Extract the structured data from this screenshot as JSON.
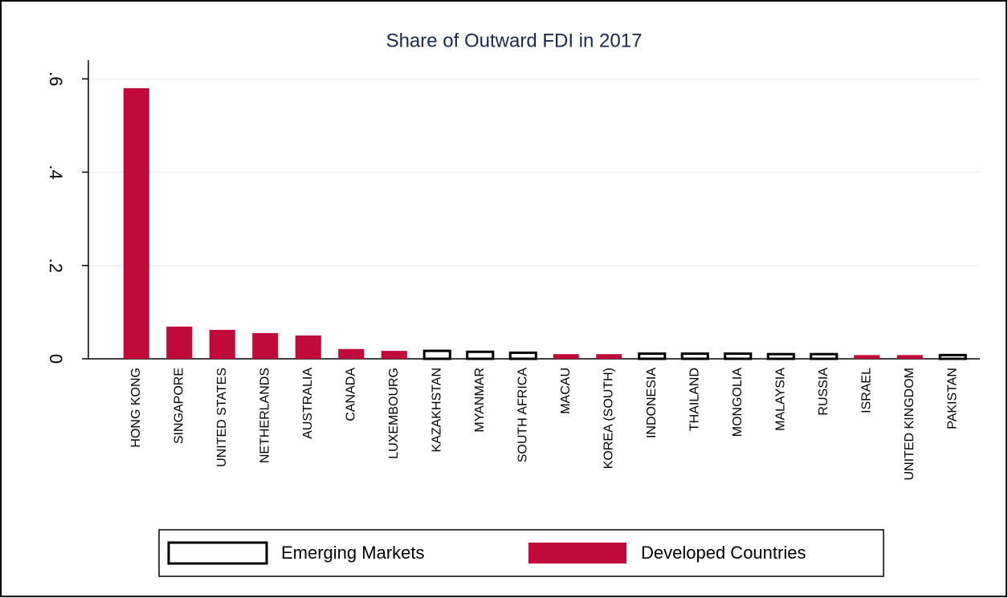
{
  "chart_data": {
    "type": "bar",
    "title": "Share of Outward FDI in 2017",
    "categories": [
      "HONG KONG",
      "SINGAPORE",
      "UNITED STATES",
      "NETHERLANDS",
      "AUSTRALIA",
      "CANADA",
      "LUXEMBOURG",
      "KAZAKHSTAN",
      "MYANMAR",
      "SOUTH AFRICA",
      "MACAU",
      "KOREA (SOUTH)",
      "INDONESIA",
      "THAILAND",
      "MONGOLIA",
      "MALAYSIA",
      "RUSSIA",
      "ISRAEL",
      "UNITED KINGDOM",
      "PAKISTAN"
    ],
    "series": [
      {
        "name": "Emerging Markets",
        "color": "#000000",
        "style": "outline",
        "values": [
          null,
          null,
          null,
          null,
          null,
          null,
          null,
          0.017,
          0.015,
          0.013,
          null,
          null,
          0.011,
          0.011,
          0.011,
          0.01,
          0.01,
          null,
          null,
          0.008
        ]
      },
      {
        "name": "Developed Countries",
        "color": "#c10a3a",
        "style": "filled",
        "values": [
          0.58,
          0.069,
          0.062,
          0.055,
          0.05,
          0.021,
          0.017,
          null,
          null,
          null,
          0.01,
          0.01,
          null,
          null,
          null,
          null,
          null,
          0.008,
          0.008,
          null
        ]
      }
    ],
    "ylim": [
      0,
      0.64
    ],
    "yticks": [
      0,
      {
        "value": 0.2,
        "label": ".2"
      },
      {
        "value": 0.4,
        "label": ".4"
      },
      {
        "value": 0.6,
        "label": ".6"
      }
    ],
    "grid": true,
    "legend": "bottom"
  }
}
